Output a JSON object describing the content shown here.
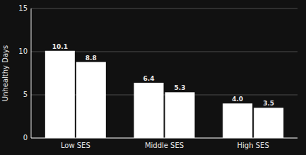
{
  "chart_data": {
    "type": "bar",
    "ylabel": "Unhealthy Days",
    "categories": [
      "Low SES",
      "Middle SES",
      "High SES"
    ],
    "series": [
      {
        "color": "#ffffff",
        "values": [
          10.1,
          6.4,
          4.0
        ],
        "value_labels": [
          "10.1",
          "6.4",
          "4.0"
        ]
      },
      {
        "color": "#ffffff",
        "values": [
          8.8,
          5.3,
          3.5
        ],
        "value_labels": [
          "8.8",
          "5.3",
          "3.5"
        ]
      }
    ],
    "ylim": [
      0,
      15
    ],
    "yticks": [
      0,
      5,
      10,
      15
    ],
    "grid": true,
    "data_labels": true
  }
}
